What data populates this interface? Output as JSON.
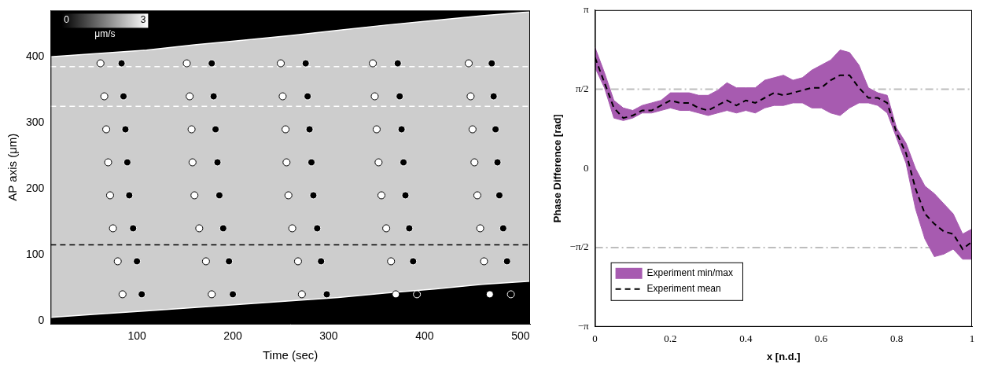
{
  "chart_data": [
    {
      "type": "scatter",
      "x_label": "Time (sec)",
      "y_label": "AP axis (μm)",
      "xlim": [
        10,
        510
      ],
      "ylim": [
        -5,
        470
      ],
      "xticks": [
        100,
        200,
        300,
        400,
        500
      ],
      "yticks": [
        0,
        100,
        200,
        300,
        400
      ],
      "grid": false,
      "tick_labels": true,
      "colorbar": {
        "range": [
          0,
          3
        ],
        "ticks": [
          0,
          3
        ],
        "label": "μm/s"
      },
      "boundary_upper": {
        "x": [
          10,
          60,
          110,
          160,
          210,
          260,
          310,
          360,
          410,
          460,
          510
        ],
        "y": [
          400,
          405,
          410,
          418,
          425,
          432,
          440,
          448,
          455,
          462,
          468
        ]
      },
      "boundary_lower": {
        "x": [
          10,
          60,
          110,
          160,
          210,
          260,
          310,
          360,
          410,
          460,
          510
        ],
        "y": [
          5,
          10,
          15,
          20,
          25,
          30,
          35,
          42,
          48,
          55,
          60
        ]
      },
      "lines": [
        {
          "color": "#ffffff",
          "line_style": "dashed",
          "x": [
            10,
            510
          ],
          "y": [
            385,
            385
          ]
        },
        {
          "color": "#ffffff",
          "line_style": "dashed",
          "x": [
            10,
            510
          ],
          "y": [
            325,
            325
          ]
        },
        {
          "color": "#000000",
          "line_style": "dashed",
          "x": [
            10,
            510
          ],
          "y": [
            115,
            115
          ]
        }
      ],
      "series": [
        {
          "color": "#ffffff",
          "marker": "circle",
          "x": [
            85,
            80,
            75,
            72,
            70,
            68,
            66,
            62,
            178,
            172,
            165,
            160,
            158,
            157,
            155,
            152,
            272,
            268,
            262,
            258,
            256,
            255,
            252,
            250,
            370,
            365,
            360,
            355,
            352,
            350,
            348,
            346,
            468,
            462,
            458,
            455,
            452,
            450,
            448,
            446
          ],
          "y": [
            40,
            90,
            140,
            190,
            240,
            290,
            340,
            390,
            40,
            90,
            140,
            190,
            240,
            290,
            340,
            390,
            40,
            90,
            140,
            190,
            240,
            290,
            340,
            390,
            40,
            90,
            140,
            190,
            240,
            290,
            340,
            390,
            40,
            90,
            140,
            190,
            240,
            290,
            340,
            390
          ]
        },
        {
          "color": "#000000",
          "marker": "circle",
          "x": [
            105,
            100,
            96,
            92,
            90,
            88,
            86,
            84,
            200,
            196,
            190,
            186,
            184,
            182,
            180,
            178,
            298,
            292,
            288,
            284,
            282,
            280,
            278,
            276,
            392,
            388,
            384,
            380,
            378,
            376,
            374,
            372,
            490,
            486,
            482,
            478,
            476,
            474,
            472,
            470
          ],
          "y": [
            40,
            90,
            140,
            190,
            240,
            290,
            340,
            390,
            40,
            90,
            140,
            190,
            240,
            290,
            340,
            390,
            40,
            90,
            140,
            190,
            240,
            290,
            340,
            390,
            40,
            90,
            140,
            190,
            240,
            290,
            340,
            390,
            40,
            90,
            140,
            190,
            240,
            290,
            340,
            390
          ]
        }
      ]
    },
    {
      "type": "line",
      "x_label": "x [n.d.]",
      "y_label": "Phase Difference [rad]",
      "xlim": [
        0,
        1
      ],
      "ylim": [
        -3.1416,
        3.1416
      ],
      "xticks": [
        0,
        0.2,
        0.4,
        0.6,
        0.8,
        1
      ],
      "yticks": [
        {
          "value": -3.1416,
          "label": "−π"
        },
        {
          "value": -1.5708,
          "label": "−π/2"
        },
        0,
        {
          "value": 1.5708,
          "label": "π/2"
        },
        {
          "value": 3.1416,
          "label": "π"
        }
      ],
      "grid": false,
      "legend": "lower left",
      "reference_lines": [
        1.5708,
        -1.5708
      ],
      "x": [
        0,
        0.025,
        0.05,
        0.075,
        0.1,
        0.125,
        0.15,
        0.175,
        0.2,
        0.225,
        0.25,
        0.275,
        0.3,
        0.325,
        0.35,
        0.375,
        0.4,
        0.425,
        0.45,
        0.475,
        0.5,
        0.525,
        0.55,
        0.575,
        0.6,
        0.625,
        0.65,
        0.675,
        0.7,
        0.725,
        0.75,
        0.775,
        0.8,
        0.825,
        0.85,
        0.875,
        0.9,
        0.925,
        0.95,
        0.975,
        1
      ],
      "band": {
        "name": "Experiment min/max",
        "color": "#a75bb0",
        "min": [
          2.0,
          1.6,
          1.0,
          0.95,
          1.0,
          1.1,
          1.1,
          1.15,
          1.2,
          1.15,
          1.15,
          1.1,
          1.05,
          1.1,
          1.15,
          1.1,
          1.15,
          1.1,
          1.2,
          1.25,
          1.25,
          1.3,
          1.3,
          1.2,
          1.2,
          1.1,
          1.05,
          1.2,
          1.3,
          1.3,
          1.25,
          1.1,
          0.6,
          0.1,
          -0.8,
          -1.4,
          -1.75,
          -1.7,
          -1.6,
          -1.8,
          -1.8
        ],
        "max": [
          2.4,
          1.9,
          1.35,
          1.2,
          1.15,
          1.25,
          1.3,
          1.35,
          1.5,
          1.5,
          1.5,
          1.45,
          1.45,
          1.55,
          1.7,
          1.6,
          1.6,
          1.6,
          1.75,
          1.8,
          1.85,
          1.75,
          1.8,
          1.95,
          2.05,
          2.15,
          2.35,
          2.3,
          2.05,
          1.6,
          1.5,
          1.45,
          0.8,
          0.5,
          0.0,
          -0.35,
          -0.5,
          -0.7,
          -0.9,
          -1.3,
          -1.2
        ]
      },
      "series": [
        {
          "name": "Experiment mean",
          "color": "#000000",
          "line_style": "dashed",
          "values": [
            2.2,
            1.7,
            1.2,
            1.0,
            1.05,
            1.15,
            1.15,
            1.25,
            1.35,
            1.3,
            1.3,
            1.2,
            1.15,
            1.25,
            1.35,
            1.25,
            1.35,
            1.3,
            1.4,
            1.5,
            1.45,
            1.5,
            1.55,
            1.6,
            1.6,
            1.75,
            1.85,
            1.85,
            1.6,
            1.4,
            1.4,
            1.3,
            0.7,
            0.3,
            -0.4,
            -0.9,
            -1.1,
            -1.25,
            -1.3,
            -1.6,
            -1.45
          ]
        }
      ]
    }
  ]
}
